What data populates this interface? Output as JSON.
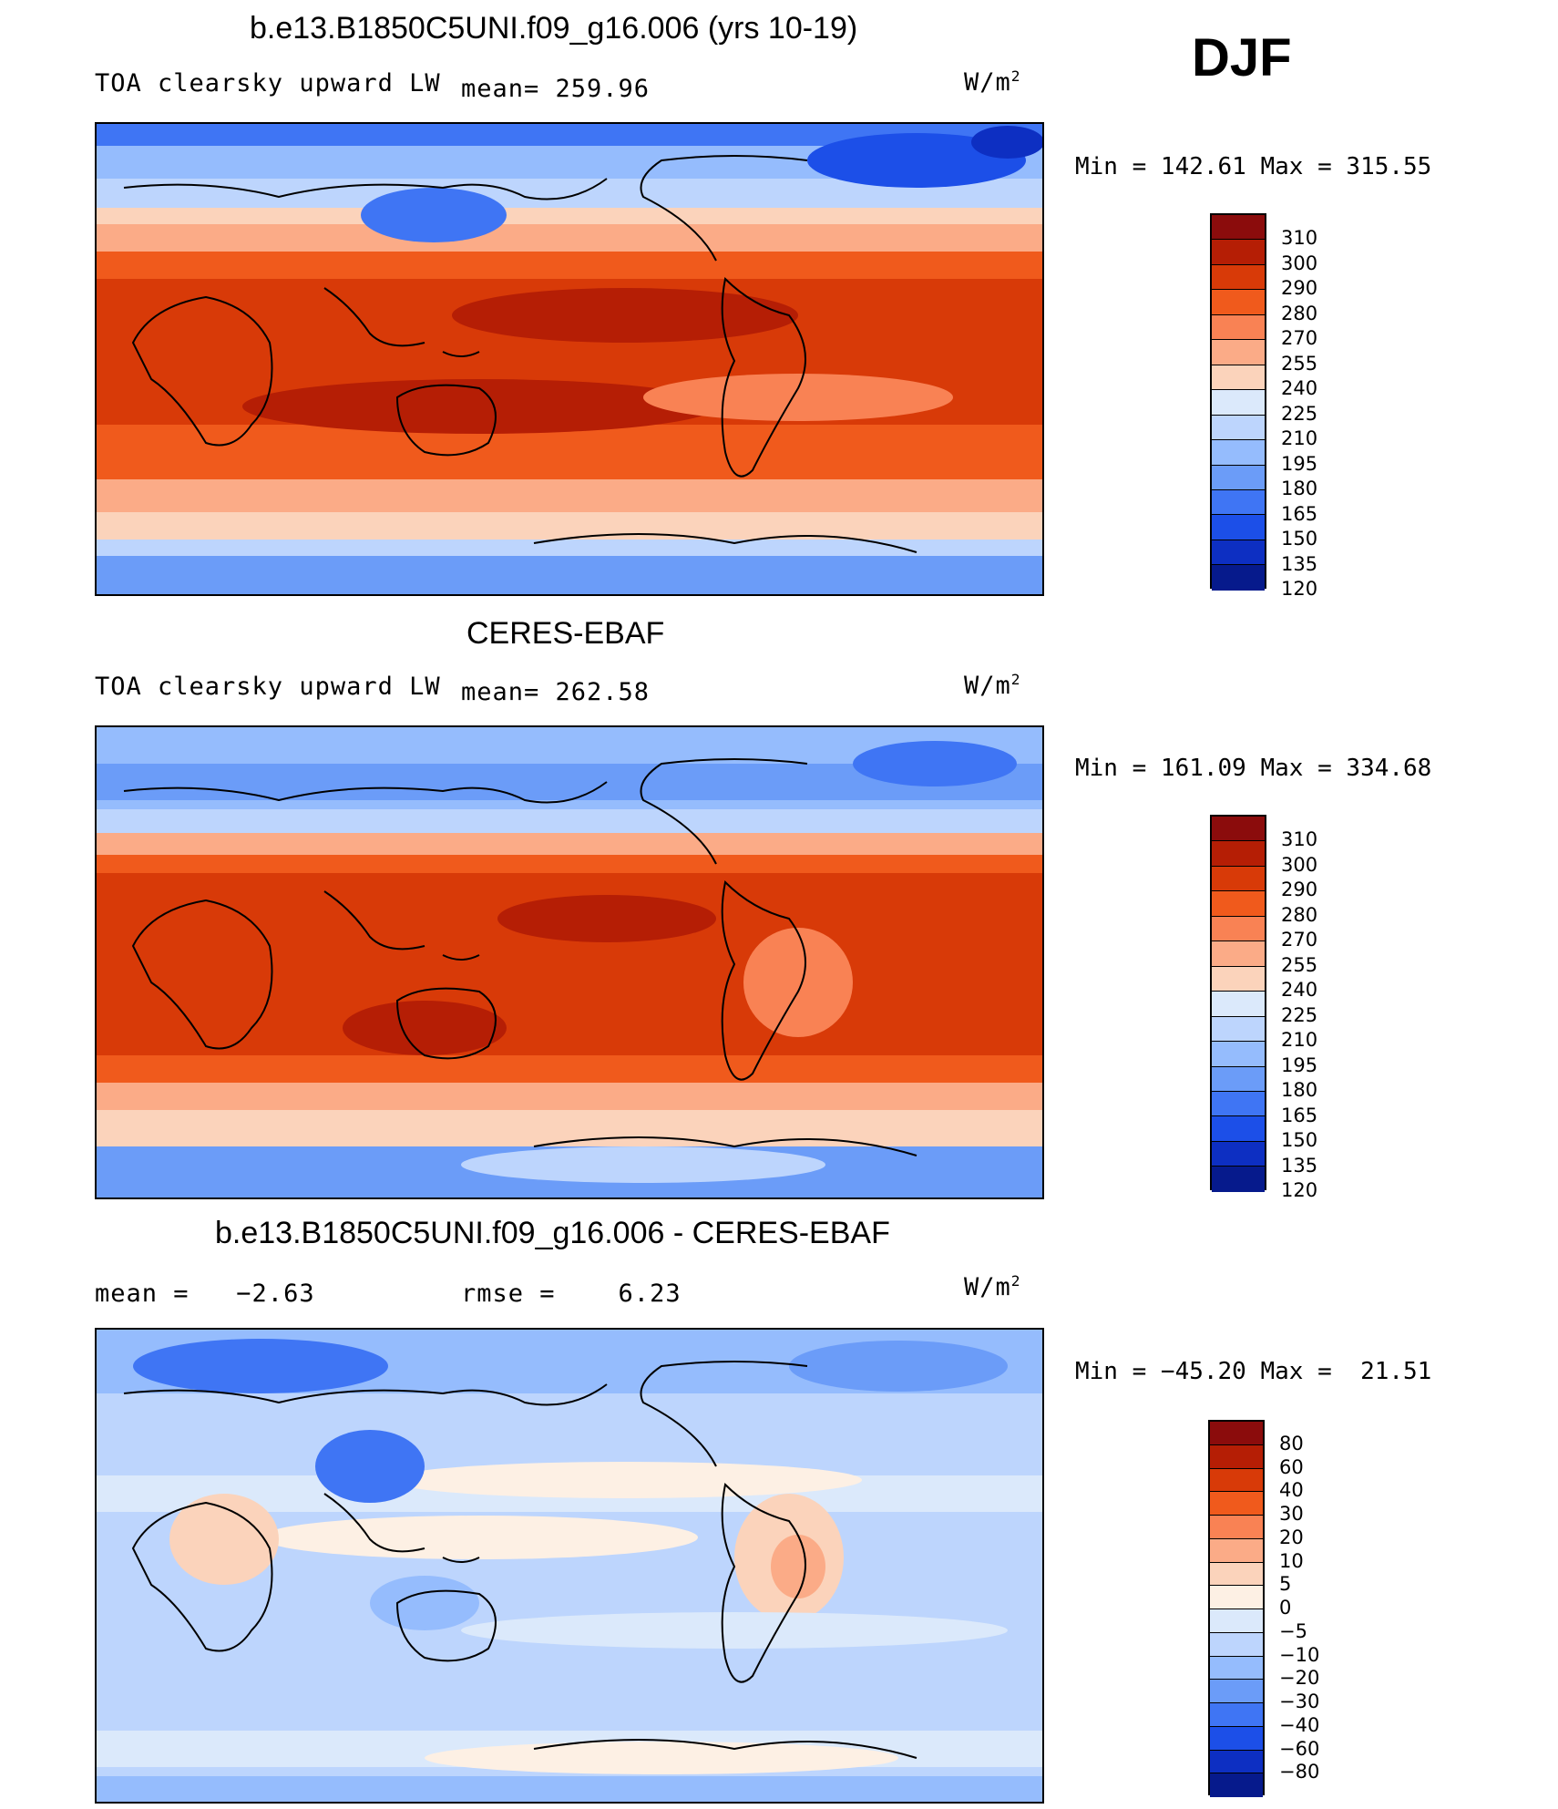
{
  "season": "DJF",
  "panels": [
    {
      "title": "b.e13.B1850C5UNI.f09_g16.006 (yrs 10-19)",
      "left_label": "TOA clearsky upward LW",
      "stat1": "mean= 259.96",
      "stat2": "",
      "units": "W/m",
      "units_sup": "2",
      "minmax": "Min = 142.61 Max = 315.55",
      "colorbar": {
        "levels": [
          "310",
          "300",
          "290",
          "280",
          "270",
          "255",
          "240",
          "225",
          "210",
          "195",
          "180",
          "165",
          "150",
          "135",
          "120"
        ],
        "colors": [
          "#8b0c0c",
          "#b51e05",
          "#d83a08",
          "#f05a1c",
          "#f98254",
          "#fbab87",
          "#fbd3bb",
          "#dbe9fb",
          "#bdd5fd",
          "#95bcfd",
          "#6b9cf8",
          "#3f75f4",
          "#1c4fe8",
          "#0d2fc2",
          "#061a8c"
        ]
      }
    },
    {
      "title": "CERES-EBAF",
      "left_label": "TOA clearsky upward LW",
      "stat1": "mean= 262.58",
      "stat2": "",
      "units": "W/m",
      "units_sup": "2",
      "minmax": "Min = 161.09 Max = 334.68",
      "colorbar": {
        "levels": [
          "310",
          "300",
          "290",
          "280",
          "270",
          "255",
          "240",
          "225",
          "210",
          "195",
          "180",
          "165",
          "150",
          "135",
          "120"
        ],
        "colors": [
          "#8b0c0c",
          "#b51e05",
          "#d83a08",
          "#f05a1c",
          "#f98254",
          "#fbab87",
          "#fbd3bb",
          "#dbe9fb",
          "#bdd5fd",
          "#95bcfd",
          "#6b9cf8",
          "#3f75f4",
          "#1c4fe8",
          "#0d2fc2",
          "#061a8c"
        ]
      }
    },
    {
      "title": "b.e13.B1850C5UNI.f09_g16.006 - CERES-EBAF",
      "left_label": "mean =   −2.63",
      "stat1": "rmse =    6.23",
      "stat2": "",
      "units": "W/m",
      "units_sup": "2",
      "minmax": "Min = −45.20 Max =  21.51",
      "colorbar": {
        "levels": [
          "80",
          "60",
          "40",
          "30",
          "20",
          "10",
          "5",
          "0",
          "−5",
          "−10",
          "−20",
          "−30",
          "−40",
          "−60",
          "−80"
        ],
        "colors": [
          "#8b0c0c",
          "#b51e05",
          "#d83a08",
          "#f05a1c",
          "#f98254",
          "#fbab87",
          "#fbd3bb",
          "#fdf0e4",
          "#dbe9fb",
          "#bdd5fd",
          "#95bcfd",
          "#6b9cf8",
          "#3f75f4",
          "#1c4fe8",
          "#0d2fc2",
          "#061a8c"
        ]
      }
    }
  ]
}
